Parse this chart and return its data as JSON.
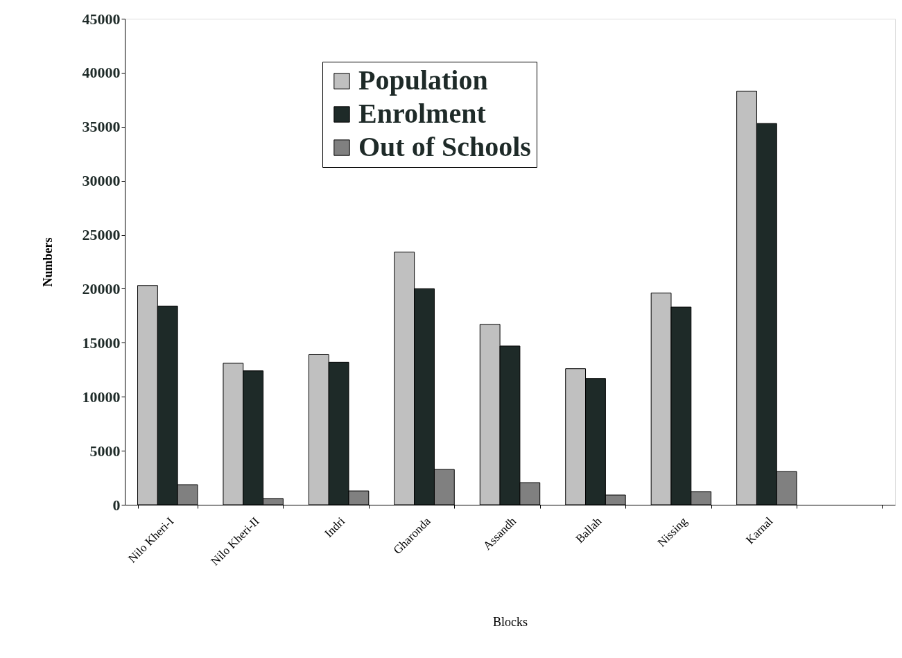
{
  "chart_data": {
    "type": "bar",
    "xlabel": "Blocks",
    "ylabel": "Numbers",
    "categories": [
      "Nilo Kheri-I",
      "Nilo Kheri-II",
      "Indri",
      "Gharonda",
      "Assandh",
      "Ballah",
      "Nissing",
      "Karnal",
      null
    ],
    "series": [
      {
        "name": "Population",
        "color": "#c0c0c0",
        "values": [
          20300,
          13100,
          13900,
          23400,
          16700,
          12600,
          19600,
          38300,
          null
        ]
      },
      {
        "name": "Enrolment",
        "color": "#1e2a28",
        "values": [
          18400,
          12400,
          13200,
          20000,
          14700,
          11700,
          18300,
          35300,
          null
        ]
      },
      {
        "name": "Out of Schools",
        "color": "#808080",
        "values": [
          1860,
          580,
          1280,
          3270,
          2050,
          900,
          1220,
          3080,
          null
        ]
      }
    ],
    "ylim": [
      0,
      45000
    ],
    "yticks": [
      0,
      5000,
      10000,
      15000,
      20000,
      25000,
      30000,
      35000,
      40000,
      45000
    ],
    "grid": false,
    "legend": "top"
  }
}
